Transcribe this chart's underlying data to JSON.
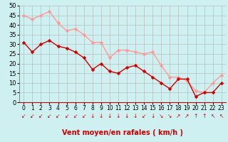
{
  "x": [
    0,
    1,
    2,
    3,
    4,
    5,
    6,
    7,
    8,
    9,
    10,
    11,
    12,
    13,
    14,
    15,
    16,
    17,
    18,
    19,
    20,
    21,
    22,
    23
  ],
  "vent_moyen": [
    31,
    26,
    30,
    32,
    29,
    28,
    26,
    23,
    17,
    20,
    16,
    15,
    18,
    19,
    16,
    13,
    10,
    7,
    12,
    12,
    3,
    5,
    5,
    10
  ],
  "rafales": [
    45,
    43,
    45,
    47,
    41,
    37,
    38,
    35,
    31,
    31,
    23,
    27,
    27,
    26,
    25,
    26,
    19,
    13,
    13,
    11,
    6,
    5,
    10,
    14
  ],
  "xlim": [
    -0.5,
    23.5
  ],
  "ylim": [
    0,
    50
  ],
  "yticks": [
    0,
    5,
    10,
    15,
    20,
    25,
    30,
    35,
    40,
    45,
    50
  ],
  "xlabel": "Vent moyen/en rafales ( km/h )",
  "bg_color": "#cff0f0",
  "grid_color": "#b0b0b0",
  "line_color_moyen": "#cc0000",
  "line_color_rafales": "#ff9999",
  "marker_size": 2.5,
  "line_width": 1.0,
  "xlabel_color": "#cc0000",
  "xlabel_fontsize": 7,
  "ytick_fontsize": 6,
  "xtick_fontsize": 5.5,
  "wind_arrow_char": "↓",
  "wind_chars": [
    "↙",
    "↙",
    "↙",
    "↙",
    "↙",
    "↙",
    "↙",
    "↙",
    "↓",
    "↓",
    "↓",
    "↓",
    "↓",
    "↓",
    "↙",
    "↓",
    "↘",
    "↘",
    "↗",
    "↗",
    "↑",
    "↑",
    "↖",
    "↖"
  ]
}
